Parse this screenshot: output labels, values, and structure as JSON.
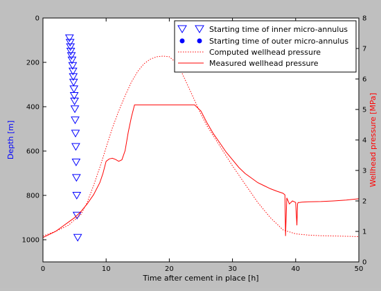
{
  "chart_data": {
    "type": "line",
    "title": "",
    "xlabel": "Time after cement in place [h]",
    "ylabel_left": "Depth [m]",
    "ylabel_right": "Wellhead pressure [MPa]",
    "xlim": [
      0,
      50
    ],
    "ylim_left": [
      1100,
      0
    ],
    "ylim_right": [
      0,
      8
    ],
    "x_ticks": [
      "0",
      "10",
      "20",
      "30",
      "40",
      "50"
    ],
    "y_left_ticks": [
      "0",
      "200",
      "400",
      "600",
      "800",
      "1000"
    ],
    "y_right_ticks": [
      "0",
      "1",
      "2",
      "3",
      "4",
      "5",
      "6",
      "7",
      "8"
    ],
    "grid": false,
    "legend_position": "top-right",
    "colors": {
      "left_axis_label": "#0000ff",
      "right_axis_label": "#ff0000",
      "inner": "#0000ff",
      "outer": "#0000ff",
      "computed": "#ff0000",
      "measured": "#ff0000"
    },
    "series": [
      {
        "name": "Starting time of inner micro-annulus",
        "axis": "left",
        "marker": "triangle-down",
        "x": [
          4.2,
          4.3,
          4.35,
          4.4,
          4.5,
          4.6,
          4.7,
          4.75,
          4.8,
          4.85,
          4.9,
          4.95,
          5.0,
          5.05,
          5.1,
          5.15,
          5.2,
          5.25,
          5.3,
          5.35,
          5.4,
          5.5
        ],
        "y": [
          90,
          110,
          130,
          150,
          170,
          190,
          215,
          240,
          265,
          290,
          320,
          350,
          375,
          410,
          460,
          520,
          580,
          650,
          720,
          800,
          890,
          990
        ]
      },
      {
        "name": "Starting time of outer micro-annulus",
        "axis": "left",
        "marker": "circle",
        "x": [],
        "y": []
      },
      {
        "name": "Computed wellhead pressure",
        "axis": "right",
        "style": "dotted",
        "x": [
          0,
          2,
          4,
          6,
          7,
          8,
          9,
          10,
          11,
          12,
          13,
          14,
          15,
          16,
          17,
          18,
          19,
          20,
          21,
          22,
          23,
          24,
          25,
          26,
          28,
          30,
          32,
          34,
          36,
          38,
          40,
          42,
          44,
          46,
          48,
          50
        ],
        "y": [
          0.85,
          1.0,
          1.2,
          1.55,
          1.95,
          2.5,
          3.1,
          3.75,
          4.4,
          4.95,
          5.45,
          5.9,
          6.25,
          6.5,
          6.65,
          6.73,
          6.75,
          6.73,
          6.55,
          6.2,
          5.75,
          5.3,
          4.85,
          4.45,
          3.8,
          3.15,
          2.55,
          1.95,
          1.45,
          1.05,
          0.92,
          0.88,
          0.86,
          0.85,
          0.84,
          0.83
        ]
      },
      {
        "name": "Measured wellhead pressure",
        "axis": "right",
        "style": "solid",
        "x": [
          0,
          1,
          2,
          3,
          4,
          5,
          6,
          7,
          8,
          9,
          9.5,
          10,
          10.5,
          11,
          11.5,
          12,
          12.5,
          13,
          13.5,
          14,
          14.5,
          20,
          24,
          25,
          26,
          27,
          28,
          29,
          30,
          31,
          32,
          33,
          34,
          35,
          36,
          37,
          38,
          38.3,
          38.4,
          38.5,
          38.6,
          38.8,
          39,
          39.5,
          40,
          40.2,
          40.3,
          40.4,
          40.6,
          41,
          42,
          44,
          46,
          48,
          50
        ],
        "y": [
          0.8,
          0.9,
          1.0,
          1.15,
          1.3,
          1.45,
          1.65,
          1.9,
          2.2,
          2.6,
          2.9,
          3.3,
          3.38,
          3.4,
          3.36,
          3.3,
          3.35,
          3.65,
          4.25,
          4.75,
          5.15,
          5.15,
          5.15,
          4.95,
          4.55,
          4.2,
          3.9,
          3.6,
          3.35,
          3.1,
          2.9,
          2.75,
          2.6,
          2.5,
          2.4,
          2.32,
          2.25,
          2.2,
          0.85,
          1.5,
          2.1,
          2.0,
          1.9,
          2.0,
          1.95,
          1.2,
          1.9,
          1.95,
          1.95,
          1.96,
          1.97,
          1.98,
          2.0,
          2.03,
          2.07
        ]
      }
    ]
  }
}
